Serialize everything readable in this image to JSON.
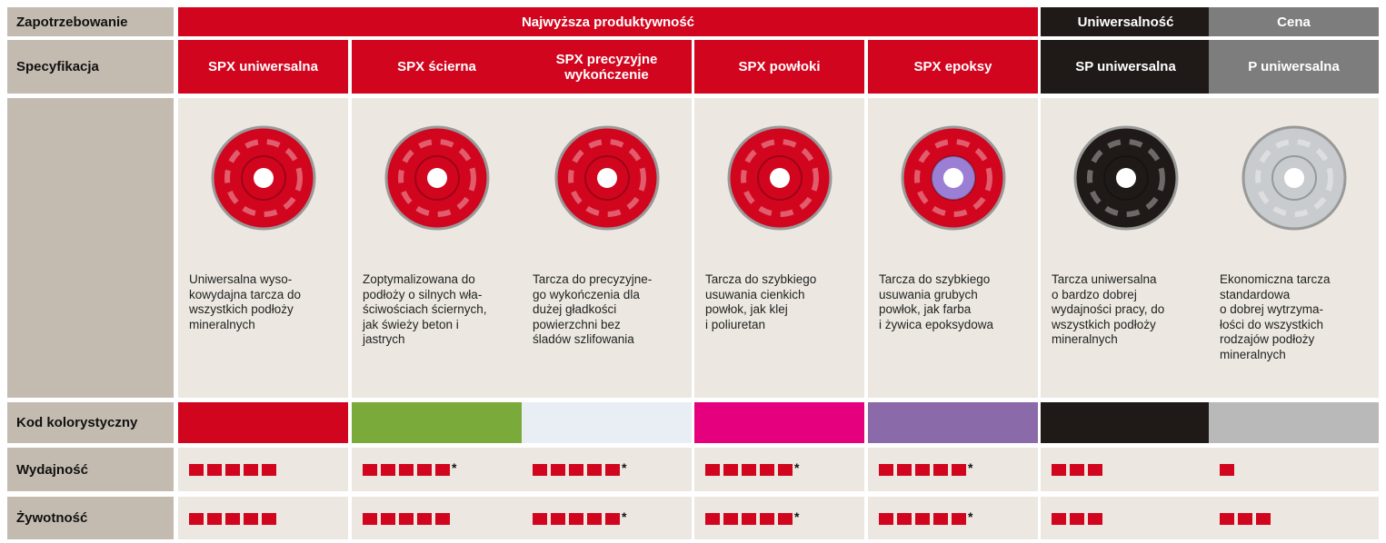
{
  "row_labels": {
    "need": "Zapotrzebowanie",
    "spec": "Specyfikacja",
    "color_code": "Kod kolorystyczny",
    "performance": "Wydajność",
    "lifetime": "Żywotność"
  },
  "groups": [
    {
      "name": "Najwyższa produktywność",
      "color": "#d2051e",
      "products": [
        {
          "name": [
            "SPX uniwersalna"
          ],
          "description": [
            "Uniwersalna wyso-",
            "kowydajna tarcza do",
            "wszystkich podłoży",
            "mineralnych"
          ],
          "color": "#d2051e",
          "performance": 5,
          "lifetime": 5
        },
        {
          "name": [
            "SPX ścierna"
          ],
          "description": [
            "Zoptymalizowana do",
            "podłoży o silnych wła-",
            "ściwościach ściernych,",
            "jak świeży beton i",
            "jastrych"
          ],
          "color": "#7aab3a",
          "performance": 5,
          "performance_note": "*",
          "lifetime": 5
        },
        {
          "name": [
            "SPX precyzyjne",
            "wykończenie"
          ],
          "description": [
            "Tarcza do precyzyjne-",
            "go wykończenia dla",
            "dużej gładkości",
            "powierzchni bez",
            "śladów szlifowania"
          ],
          "color": "#e8eef3",
          "performance": 5,
          "performance_note": "*",
          "lifetime": 5,
          "lifetime_note": "*"
        },
        {
          "name": [
            "SPX powłoki"
          ],
          "description": [
            "Tarcza do szybkiego",
            "usuwania cienkich",
            "powłok, jak klej",
            "i poliuretan"
          ],
          "color": "#e5007e",
          "performance": 5,
          "performance_note": "*",
          "lifetime": 5,
          "lifetime_note": "*"
        },
        {
          "name": [
            "SPX epoksy"
          ],
          "description": [
            "Tarcza do szybkiego",
            "usuwania grubych",
            "powłok, jak farba",
            "i żywica epoksydowa"
          ],
          "color": "#8a6aa8",
          "performance": 5,
          "performance_note": "*",
          "lifetime": 5,
          "lifetime_note": "*"
        }
      ]
    },
    {
      "name": "Uniwersalność",
      "color": "#1f1a17",
      "products": [
        {
          "name": [
            "SP uniwersalna"
          ],
          "description": [
            "Tarcza uniwersalna",
            "o bardzo dobrej",
            "wydajności pracy, do",
            "wszystkich podłoży",
            "mineralnych"
          ],
          "color": "#1f1a17",
          "performance": 3,
          "lifetime": 3
        }
      ]
    },
    {
      "name": "Cena",
      "color": "#7d7d7d",
      "products": [
        {
          "name": [
            "P uniwersalna"
          ],
          "description": [
            "Ekonomiczna tarcza",
            "standardowa",
            "o dobrej wytrzyma-",
            "łości do wszystkich",
            "rodzajów podłoży",
            "mineralnych"
          ],
          "color": "#b9b9b9",
          "performance": 1,
          "lifetime": 3
        }
      ]
    }
  ]
}
